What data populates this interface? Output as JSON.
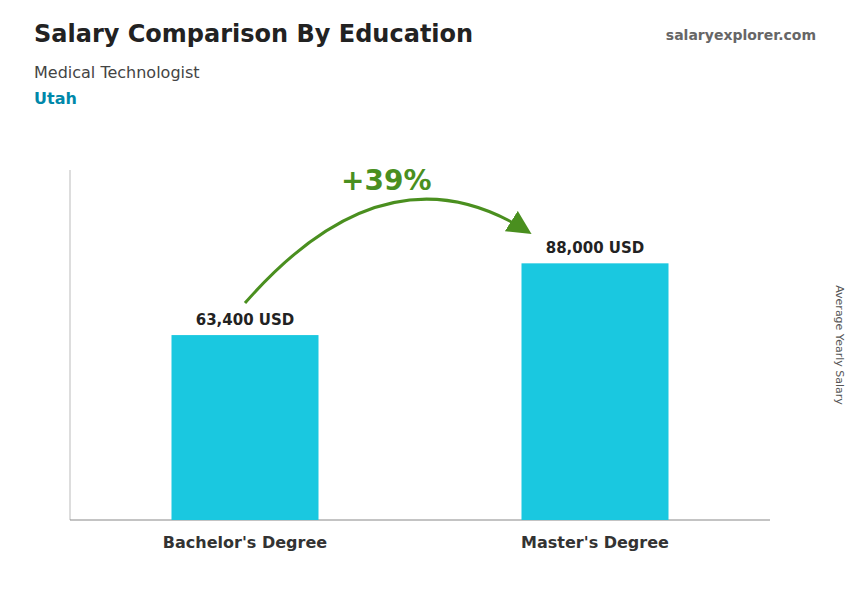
{
  "chart_data": {
    "type": "bar",
    "title": "Salary Comparison By Education",
    "subtitle": "Medical Technologist",
    "annotations": [
      "Utah",
      "salaryexplorer.com",
      "+39%"
    ],
    "ylabel": "Average Yearly Salary",
    "categories": [
      "Bachelor's Degree",
      "Master's Degree"
    ],
    "values": [
      63400,
      88000
    ],
    "value_labels": [
      "63,400 USD",
      "88,000 USD"
    ],
    "color": "#1ac8e0",
    "ylim": [
      0,
      120000
    ],
    "yticks": [],
    "tick_labels": "x",
    "data_labels": true,
    "grid": false
  }
}
